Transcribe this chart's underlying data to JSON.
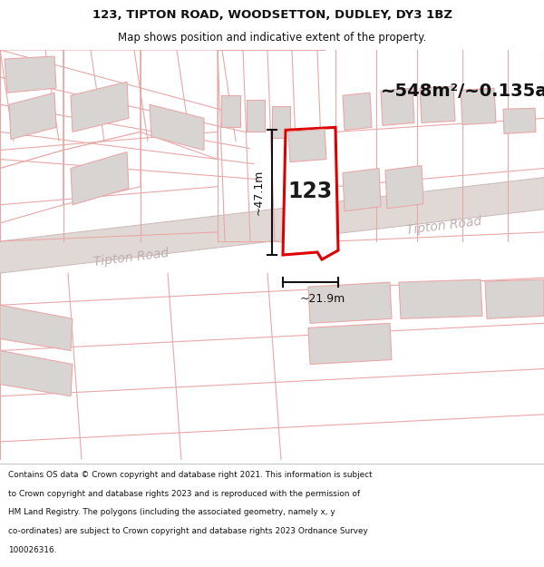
{
  "title_line1": "123, TIPTON ROAD, WOODSETTON, DUDLEY, DY3 1BZ",
  "title_line2": "Map shows position and indicative extent of the property.",
  "area_text": "~548m²/~0.135ac.",
  "label_123": "123",
  "road_name_1": "Tipton Road",
  "road_name_2": "Tipton Road",
  "dim_vertical": "~47.1m",
  "dim_horizontal": "~21.9m",
  "footer_lines": [
    "Contains OS data © Crown copyright and database right 2021. This information is subject",
    "to Crown copyright and database rights 2023 and is reproduced with the permission of",
    "HM Land Registry. The polygons (including the associated geometry, namely x, y",
    "co-ordinates) are subject to Crown copyright and database rights 2023 Ordnance Survey",
    "100026316."
  ],
  "bg_color": "#ffffff",
  "map_bg": "#ffffff",
  "road_fill": "#e0d8d5",
  "building_fill": "#d8d4d2",
  "plot_line_color": "#e8a8a8",
  "highlight_stroke": "#dd0000",
  "title_color": "#111111",
  "footer_color": "#111111",
  "dim_color": "#111111",
  "road_text_color": "#c0b0b0"
}
